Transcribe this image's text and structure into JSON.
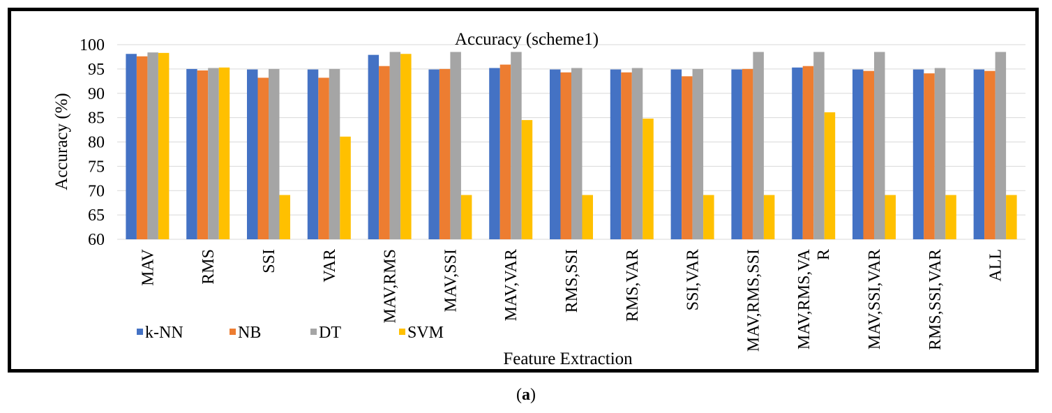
{
  "chart_data": {
    "type": "bar",
    "title": "Accuracy (scheme1)",
    "xlabel": "Feature Extraction",
    "ylabel": "Accuracy (%)",
    "ylim": [
      60,
      100
    ],
    "yticks": [
      "60",
      "65",
      "70",
      "75",
      "80",
      "85",
      "90",
      "95",
      "100"
    ],
    "grid": true,
    "legend_position": "bottom-left",
    "categories": [
      [
        "MAV"
      ],
      [
        "RMS"
      ],
      [
        "SSI"
      ],
      [
        "VAR"
      ],
      [
        "MAV,RMS"
      ],
      [
        "MAV,SSI"
      ],
      [
        "MAV,VAR"
      ],
      [
        "RMS,SSI"
      ],
      [
        "RMS,VAR"
      ],
      [
        "SSI,VAR"
      ],
      [
        "MAV,RMS,SSI"
      ],
      [
        "MAV,RMS,VA",
        "R"
      ],
      [
        "MAV,SSI,VAR"
      ],
      [
        "RMS,SSI,VAR"
      ],
      [
        "ALL"
      ]
    ],
    "series": [
      {
        "name": "k-NN",
        "color": "#4472C4",
        "values": [
          98.1,
          95.0,
          94.9,
          94.9,
          97.9,
          94.9,
          95.2,
          94.9,
          94.9,
          94.9,
          94.9,
          95.3,
          94.9,
          94.9,
          94.9
        ]
      },
      {
        "name": "NB",
        "color": "#ED7D31",
        "values": [
          97.6,
          94.7,
          93.2,
          93.2,
          95.6,
          95.0,
          95.9,
          94.3,
          94.3,
          93.5,
          95.0,
          95.6,
          94.6,
          94.1,
          94.6
        ]
      },
      {
        "name": "DT",
        "color": "#A5A5A5",
        "values": [
          98.4,
          95.2,
          95.0,
          95.0,
          98.5,
          98.5,
          98.5,
          95.2,
          95.2,
          95.0,
          98.5,
          98.5,
          98.5,
          95.2,
          98.5
        ]
      },
      {
        "name": "SVM",
        "color": "#FFC000",
        "values": [
          98.3,
          95.3,
          69.1,
          81.1,
          98.1,
          69.1,
          84.5,
          69.1,
          84.8,
          69.1,
          69.1,
          86.1,
          69.1,
          69.1,
          69.1
        ]
      }
    ]
  },
  "caption": {
    "open": "(",
    "label": "a",
    "close": ")"
  }
}
